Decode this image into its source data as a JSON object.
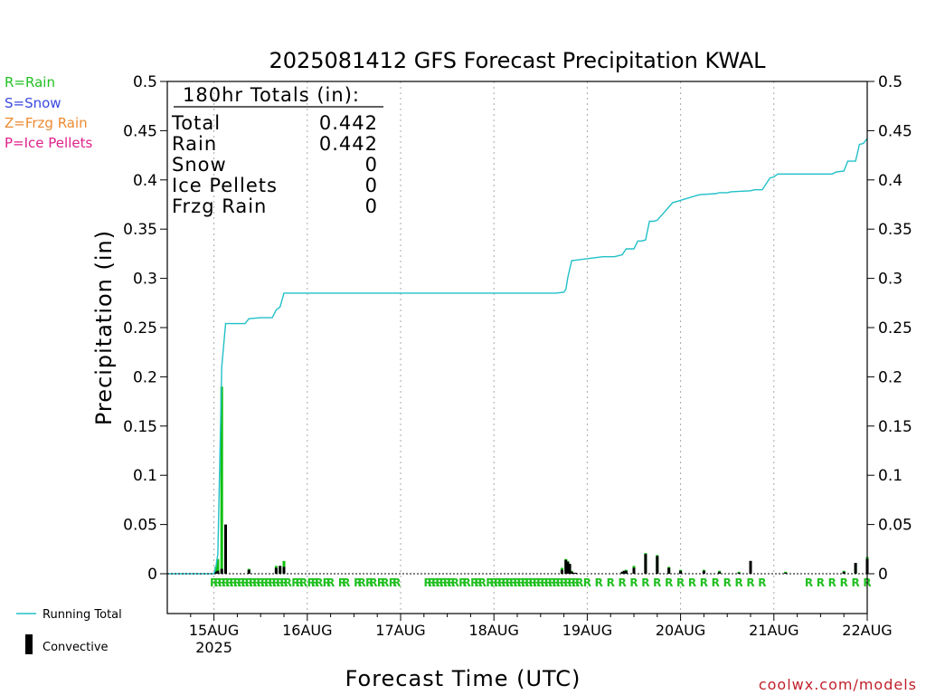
{
  "chart_data": {
    "type": "bar",
    "title": "2025081412 GFS Forecast Precipitation KWAL",
    "ylabel": "Precipitation (in)",
    "xlabel": "Forecast Time (UTC)",
    "ylim": [
      0,
      0.5
    ],
    "y_ticks": [
      0,
      0.05,
      0.1,
      0.15,
      0.2,
      0.25,
      0.3,
      0.35,
      0.4,
      0.45,
      0.5
    ],
    "y_tick_labels": [
      "0",
      "0.05",
      "0.1",
      "0.15",
      "0.2",
      "0.25",
      "0.3",
      "0.35",
      "0.4",
      "0.45",
      "0.5"
    ],
    "x_range_hours": [
      0,
      180
    ],
    "x_major_ticks": [
      {
        "hour": 12,
        "label": "15AUG"
      },
      {
        "hour": 36,
        "label": "16AUG"
      },
      {
        "hour": 60,
        "label": "17AUG"
      },
      {
        "hour": 84,
        "label": "18AUG"
      },
      {
        "hour": 108,
        "label": "19AUG"
      },
      {
        "hour": 132,
        "label": "20AUG"
      },
      {
        "hour": 156,
        "label": "21AUG"
      },
      {
        "hour": 180,
        "label": "22AUG"
      }
    ],
    "year_label": "2025",
    "grid": "vertical dotted at day boundaries",
    "precip_type_legend": [
      {
        "text": "R=Rain",
        "color": "#22c022"
      },
      {
        "text": "S=Snow",
        "color": "#3a4adf"
      },
      {
        "text": "Z=Frzg Rain",
        "color": "#ee8a30"
      },
      {
        "text": "P=Ice Pellets",
        "color": "#e0208a"
      }
    ],
    "totals_box": {
      "header": "180hr Totals (in):",
      "rows": [
        {
          "label": "Total",
          "value": "0.442"
        },
        {
          "label": "Rain",
          "value": "0.442"
        },
        {
          "label": "Snow",
          "value": "0"
        },
        {
          "label": "Ice Pellets",
          "value": "0"
        },
        {
          "label": "Frzg Rain",
          "value": "0"
        }
      ]
    },
    "series": [
      {
        "name": "Running Total",
        "type": "line",
        "color": "#20c0c8",
        "x": [
          0,
          12,
          12.5,
          13,
          14,
          15,
          16,
          17,
          18,
          20,
          21,
          24,
          27,
          28,
          29,
          30,
          60,
          90,
          100,
          102,
          102.5,
          103,
          104,
          112,
          114,
          115,
          116,
          117,
          118,
          119,
          120,
          121,
          122,
          123,
          124,
          125,
          126,
          130,
          131,
          136,
          137,
          141,
          142,
          144,
          145,
          150,
          151,
          153,
          155,
          156,
          157,
          165,
          171,
          172,
          174,
          175,
          177,
          178,
          179,
          180
        ],
        "values": [
          0,
          0,
          0.007,
          0.02,
          0.21,
          0.254,
          0.254,
          0.254,
          0.254,
          0.254,
          0.259,
          0.26,
          0.26,
          0.268,
          0.271,
          0.285,
          0.285,
          0.285,
          0.285,
          0.286,
          0.289,
          0.301,
          0.318,
          0.322,
          0.322,
          0.322,
          0.323,
          0.324,
          0.33,
          0.33,
          0.33,
          0.338,
          0.338,
          0.339,
          0.358,
          0.358,
          0.359,
          0.377,
          0.378,
          0.384,
          0.385,
          0.386,
          0.387,
          0.387,
          0.388,
          0.389,
          0.39,
          0.39,
          0.402,
          0.403,
          0.406,
          0.406,
          0.406,
          0.408,
          0.409,
          0.419,
          0.419,
          0.436,
          0.437,
          0.442
        ]
      },
      {
        "name": "Convective",
        "type": "bar",
        "color": "#000000",
        "x": [
          12.5,
          13,
          14,
          15,
          21,
          28,
          29,
          30,
          101.5,
          102.5,
          103,
          103.5,
          104,
          104.5,
          105,
          117,
          117.5,
          118,
          120,
          123,
          126,
          129,
          132,
          138,
          142,
          147,
          150,
          159,
          174,
          177,
          180
        ],
        "values": [
          0.002,
          0.003,
          0.005,
          0.05,
          0.004,
          0.006,
          0.008,
          0.007,
          0.004,
          0.014,
          0.012,
          0.01,
          0.002,
          0.001,
          0.001,
          0.002,
          0.003,
          0.003,
          0.006,
          0.02,
          0.018,
          0.006,
          0.003,
          0.003,
          0.002,
          0.001,
          0.013,
          0.001,
          0.002,
          0.011,
          0.015
        ]
      },
      {
        "name": "Total",
        "type": "bar",
        "color": "#10c010",
        "x": [
          12.5,
          13,
          14,
          15,
          21,
          28,
          29,
          30,
          101.5,
          102.5,
          103,
          103.5,
          104,
          117,
          117.5,
          118,
          120,
          123,
          126,
          129,
          132,
          138,
          142,
          147,
          150,
          159,
          174,
          177,
          180
        ],
        "values": [
          0.007,
          0.015,
          0.19,
          0.045,
          0.005,
          0.008,
          0.006,
          0.013,
          0.006,
          0.015,
          0.013,
          0.01,
          0.003,
          0.002,
          0.003,
          0.004,
          0.008,
          0.021,
          0.019,
          0.007,
          0.004,
          0.004,
          0.003,
          0.002,
          0.013,
          0.002,
          0.003,
          0.01,
          0.017
        ]
      }
    ],
    "precip_type_markers": {
      "letter": "R",
      "color": "#22c022",
      "hours": [
        12,
        13,
        14,
        15,
        16,
        17,
        18,
        19,
        20,
        21,
        22,
        23,
        24,
        25,
        26,
        27,
        28,
        29,
        30,
        31,
        33,
        34,
        35,
        37,
        38,
        39,
        41,
        42,
        45,
        46,
        49,
        50,
        52,
        53,
        55,
        56,
        58,
        59,
        67,
        68,
        69,
        70,
        71,
        72,
        73,
        74,
        76,
        77,
        79,
        80,
        81,
        83,
        84,
        85,
        86,
        87,
        88,
        89,
        90,
        91,
        92,
        93,
        94,
        95,
        96,
        97,
        98,
        99,
        100,
        101,
        102,
        103,
        104,
        105,
        106,
        108,
        111,
        114,
        117,
        120,
        123,
        126,
        129,
        132,
        135,
        138,
        141,
        144,
        147,
        150,
        153,
        165,
        168,
        171,
        174,
        177,
        180
      ]
    },
    "bottom_legend": [
      {
        "label": "Running Total",
        "color": "#20c0c8",
        "kind": "line"
      },
      {
        "label": "Convective",
        "color": "#000000",
        "kind": "bar"
      }
    ],
    "credit": "coolwx.com/models"
  }
}
